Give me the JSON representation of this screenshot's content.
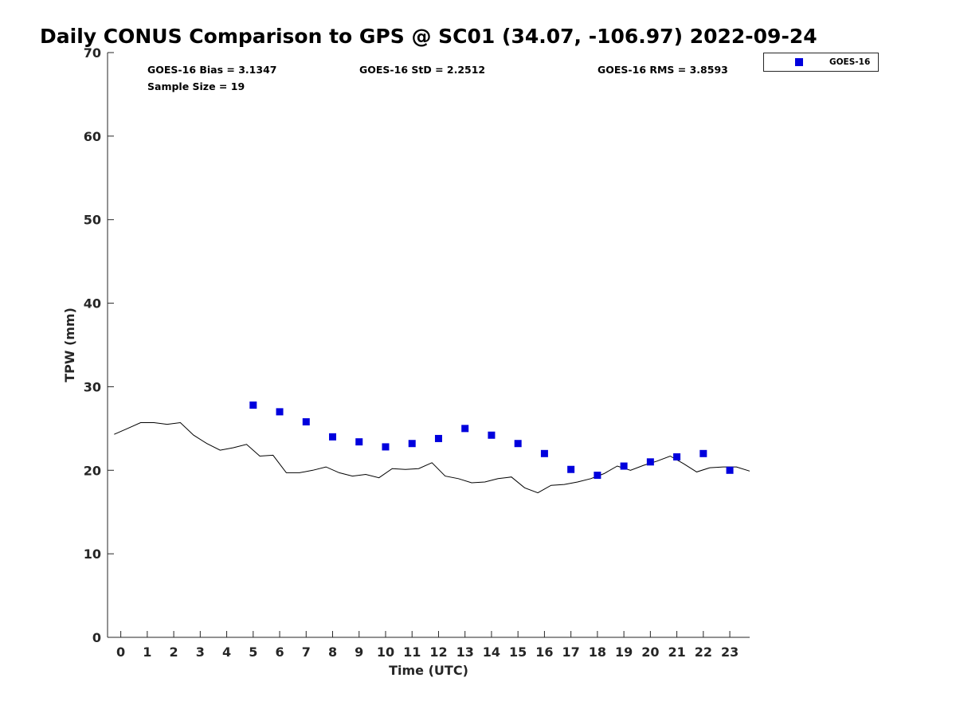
{
  "chart_data": {
    "type": "scatter",
    "title": "Daily CONUS Comparison to GPS @ SC01 (34.07, -106.97) 2022-09-24",
    "xlabel": "Time (UTC)",
    "ylabel": "TPW (mm)",
    "xlim": [
      -0.5,
      23.75
    ],
    "ylim": [
      0,
      70
    ],
    "xticks": [
      0,
      1,
      2,
      3,
      4,
      5,
      6,
      7,
      8,
      9,
      10,
      11,
      12,
      13,
      14,
      15,
      16,
      17,
      18,
      19,
      20,
      21,
      22,
      23
    ],
    "yticks": [
      0,
      10,
      20,
      30,
      40,
      50,
      60,
      70
    ],
    "grid": false,
    "legend": {
      "placement": "top-right outside",
      "entries": [
        "GOES-16"
      ]
    },
    "stats": {
      "bias": "GOES-16 Bias = 3.1347",
      "std": "GOES-16 StD = 2.2512",
      "rms": "GOES-16 RMS = 3.8593",
      "sample_size": "Sample Size = 19"
    },
    "series": [
      {
        "name": "GOES-16",
        "kind": "scatter",
        "marker": "square",
        "color": "#0000dd",
        "x": [
          5,
          6,
          7,
          8,
          9,
          10,
          11,
          12,
          13,
          14,
          15,
          16,
          17,
          18,
          19,
          20,
          21,
          22,
          23
        ],
        "y": [
          27.8,
          27.0,
          25.8,
          24.0,
          23.4,
          22.8,
          23.2,
          23.8,
          25.0,
          24.2,
          23.2,
          22.0,
          20.1,
          19.4,
          20.5,
          21.0,
          21.6,
          22.0,
          20.0
        ]
      },
      {
        "kind": "line",
        "color": "#000000",
        "x": [
          -0.25,
          0.25,
          0.75,
          1.25,
          1.75,
          2.25,
          2.75,
          3.25,
          3.75,
          4.25,
          4.75,
          5.25,
          5.75,
          6.25,
          6.75,
          7.25,
          7.75,
          8.25,
          8.75,
          9.25,
          9.75,
          10.25,
          10.75,
          11.25,
          11.75,
          12.25,
          12.75,
          13.25,
          13.75,
          14.25,
          14.75,
          15.25,
          15.75,
          16.25,
          16.75,
          17.25,
          17.75,
          18.25,
          18.75,
          19.25,
          19.75,
          20.25,
          20.75,
          21.25,
          21.75,
          22.25,
          22.75,
          23.25,
          23.75
        ],
        "y": [
          24.3,
          25.0,
          25.7,
          25.7,
          25.5,
          25.7,
          24.2,
          23.2,
          22.4,
          22.7,
          23.1,
          21.7,
          21.8,
          19.7,
          19.7,
          20.0,
          20.4,
          19.7,
          19.3,
          19.5,
          19.1,
          20.2,
          20.1,
          20.2,
          20.9,
          19.3,
          19.0,
          18.5,
          18.6,
          19.0,
          19.2,
          17.9,
          17.3,
          18.2,
          18.3,
          18.6,
          19.0,
          19.6,
          20.5,
          20.0,
          20.6,
          21.1,
          21.7,
          20.8,
          19.8,
          20.3,
          20.4,
          20.4,
          19.9
        ]
      }
    ]
  }
}
